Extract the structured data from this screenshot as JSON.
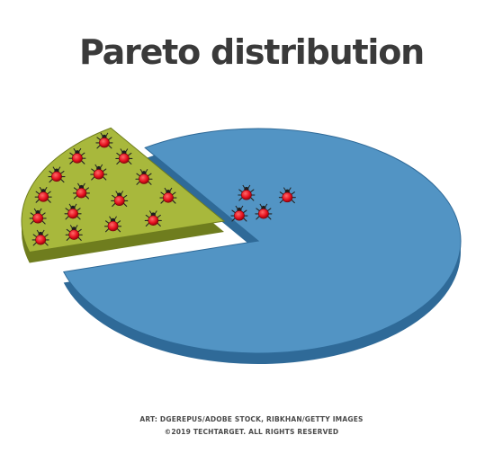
{
  "chart_data": {
    "type": "pie",
    "title": "Pareto distribution",
    "style": "3d-exploded",
    "slices": [
      {
        "value": 80,
        "color": "#5294c4",
        "side_color": "#2f6a98",
        "exploded": false,
        "bugs": 4
      },
      {
        "value": 20,
        "color": "#a8b83c",
        "side_color": "#6f7d1e",
        "exploded": true,
        "bugs": 16
      }
    ],
    "grid": false,
    "legend": "none"
  },
  "credits": {
    "line1": "ART: DGEREPUS/ADOBE STOCK, RIBKHAN/GETTY IMAGES",
    "line2": "©2019 TECHTARGET. ALL RIGHTS RESERVED"
  }
}
